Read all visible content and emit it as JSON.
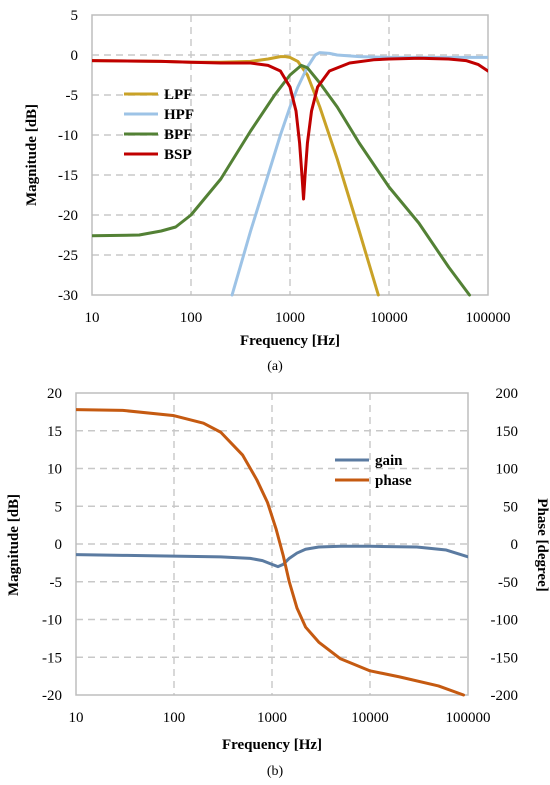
{
  "chart_data": [
    {
      "id": "a",
      "type": "line",
      "caption": "(a)",
      "xlabel": "Frequency [Hz]",
      "ylabel": "Magnitude [dB]",
      "xscale": "log",
      "xlim": [
        10,
        100000
      ],
      "ylim": [
        -30,
        5
      ],
      "xticks": [
        10,
        100,
        1000,
        10000,
        100000
      ],
      "xtick_labels": [
        "10",
        "100",
        "1000",
        "10000",
        "100000"
      ],
      "yticks": [
        5,
        0,
        -5,
        -10,
        -15,
        -20,
        -25,
        -30
      ],
      "ytick_labels": [
        "5",
        "0",
        "-5",
        "-10",
        "-15",
        "-20",
        "-25",
        "-30"
      ],
      "grid": true,
      "legend": "upper-left",
      "series": [
        {
          "name": "LPF",
          "color": "#c9a227",
          "x": [
            10,
            50,
            100,
            200,
            400,
            600,
            800,
            900,
            1000,
            1200,
            1500,
            2000,
            3000,
            5000,
            7800
          ],
          "y": [
            -0.7,
            -0.8,
            -0.9,
            -0.9,
            -0.8,
            -0.5,
            -0.2,
            -0.2,
            -0.3,
            -0.8,
            -2.5,
            -6.5,
            -13,
            -22,
            -30
          ]
        },
        {
          "name": "HPF",
          "color": "#9dc3e6",
          "x": [
            260,
            400,
            600,
            800,
            1000,
            1200,
            1500,
            1800,
            2000,
            2500,
            3000,
            5000,
            10000,
            30000,
            100000
          ],
          "y": [
            -30,
            -22,
            -15,
            -10,
            -6.5,
            -4,
            -1.5,
            0,
            0.3,
            0.2,
            0,
            -0.2,
            -0.3,
            -0.3,
            -0.3
          ]
        },
        {
          "name": "BPF",
          "color": "#538135",
          "x": [
            10,
            30,
            50,
            70,
            100,
            200,
            400,
            700,
            1000,
            1300,
            1500,
            2000,
            3000,
            5000,
            10000,
            20000,
            40000,
            65000
          ],
          "y": [
            -22.6,
            -22.5,
            -22,
            -21.5,
            -20,
            -15.5,
            -9.5,
            -5,
            -2.5,
            -1.3,
            -1.6,
            -3.5,
            -6.5,
            -11,
            -16.5,
            -21,
            -26.5,
            -30
          ]
        },
        {
          "name": "BSP",
          "color": "#c00000",
          "x": [
            10,
            50,
            100,
            200,
            400,
            600,
            800,
            1000,
            1150,
            1250,
            1320,
            1370,
            1420,
            1500,
            1650,
            1900,
            2500,
            4000,
            7000,
            10000,
            20000,
            40000,
            60000,
            80000,
            100000
          ],
          "y": [
            -0.7,
            -0.8,
            -0.9,
            -1.0,
            -1.0,
            -1.3,
            -2,
            -4,
            -7,
            -11,
            -15,
            -18,
            -15,
            -11,
            -7,
            -4,
            -2,
            -1,
            -0.6,
            -0.5,
            -0.4,
            -0.5,
            -0.7,
            -1.2,
            -2.0
          ]
        }
      ]
    },
    {
      "id": "b",
      "type": "line",
      "caption": "(b)",
      "xlabel": "Frequency [Hz]",
      "ylabel": "Magnitude [dB]",
      "y2label": "Phase [degree]",
      "xscale": "log",
      "xlim": [
        10,
        100000
      ],
      "ylim": [
        -20,
        20
      ],
      "y2lim": [
        -200,
        200
      ],
      "xticks": [
        10,
        100,
        1000,
        10000,
        100000
      ],
      "xtick_labels": [
        "10",
        "100",
        "1000",
        "10000",
        "100000"
      ],
      "yticks": [
        20,
        15,
        10,
        5,
        0,
        -5,
        -10,
        -15,
        -20
      ],
      "ytick_labels": [
        "20",
        "15",
        "10",
        "5",
        "0",
        "-5",
        "-10",
        "-15",
        "-20"
      ],
      "y2ticks": [
        200,
        150,
        100,
        50,
        0,
        -50,
        -100,
        -150,
        -200
      ],
      "y2tick_labels": [
        "200",
        "150",
        "100",
        "50",
        "0",
        "-50",
        "-100",
        "-150",
        "-200"
      ],
      "grid": true,
      "legend": "upper-right",
      "series": [
        {
          "name": "gain",
          "color": "#5b7ba1",
          "axis": "left",
          "x": [
            10,
            30,
            100,
            300,
            600,
            800,
            1000,
            1150,
            1300,
            1500,
            1800,
            2200,
            3000,
            5000,
            10000,
            30000,
            60000,
            100000
          ],
          "y": [
            -1.4,
            -1.5,
            -1.6,
            -1.7,
            -1.9,
            -2.2,
            -2.7,
            -3.0,
            -2.7,
            -1.9,
            -1.2,
            -0.7,
            -0.4,
            -0.3,
            -0.3,
            -0.4,
            -0.8,
            -1.7
          ]
        },
        {
          "name": "phase",
          "color": "#c55a11",
          "axis": "right",
          "x": [
            10,
            30,
            100,
            200,
            300,
            500,
            700,
            900,
            1100,
            1300,
            1500,
            1800,
            2200,
            3000,
            5000,
            10000,
            20000,
            50000,
            90000
          ],
          "y": [
            178,
            177,
            170,
            160,
            148,
            118,
            85,
            55,
            20,
            -15,
            -50,
            -85,
            -110,
            -130,
            -152,
            -168,
            -176,
            -188,
            -200
          ]
        }
      ]
    }
  ]
}
